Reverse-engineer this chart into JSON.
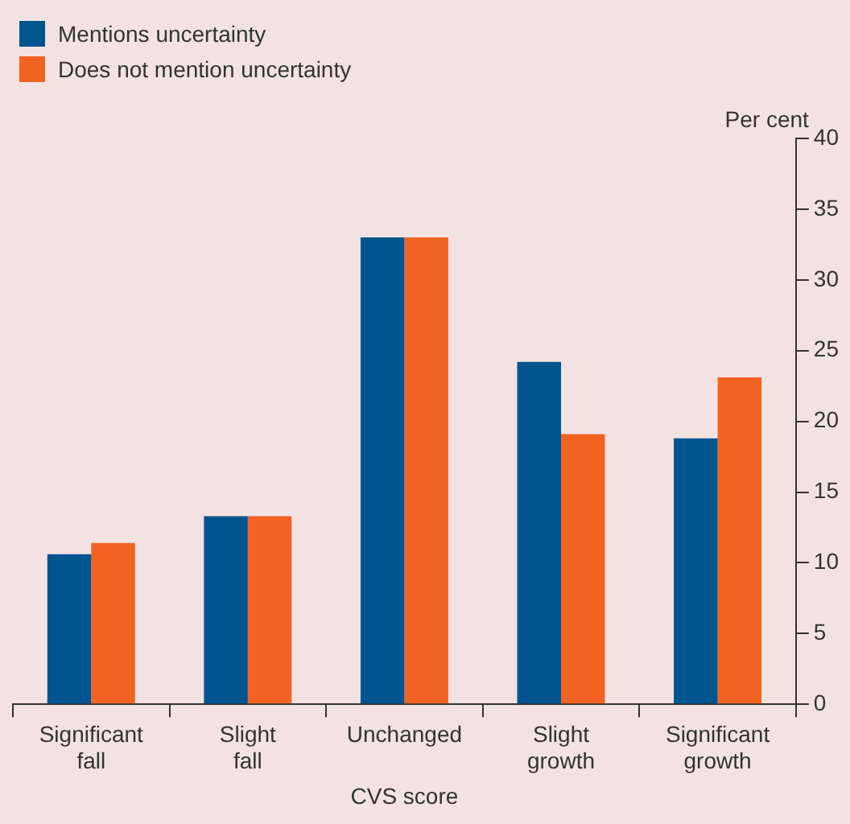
{
  "chart_data": {
    "type": "bar",
    "xlabel": "CVS score",
    "ylabel": "Per cent",
    "categories": [
      "Significant fall",
      "Slight fall",
      "Unchanged",
      "Slight growth",
      "Significant growth"
    ],
    "series": [
      {
        "name": "Mentions uncertainty",
        "color": "#00558f",
        "values": [
          10.6,
          13.3,
          33,
          24.2,
          18.8
        ]
      },
      {
        "name": "Does not mention uncertainty",
        "color": "#f26322",
        "values": [
          11.4,
          13.3,
          33,
          19.1,
          23.1
        ]
      }
    ],
    "ylim": [
      0,
      40
    ],
    "yticks": [
      0,
      5,
      10,
      15,
      20,
      25,
      30,
      35,
      40
    ],
    "grid": false,
    "legend": "top left"
  }
}
